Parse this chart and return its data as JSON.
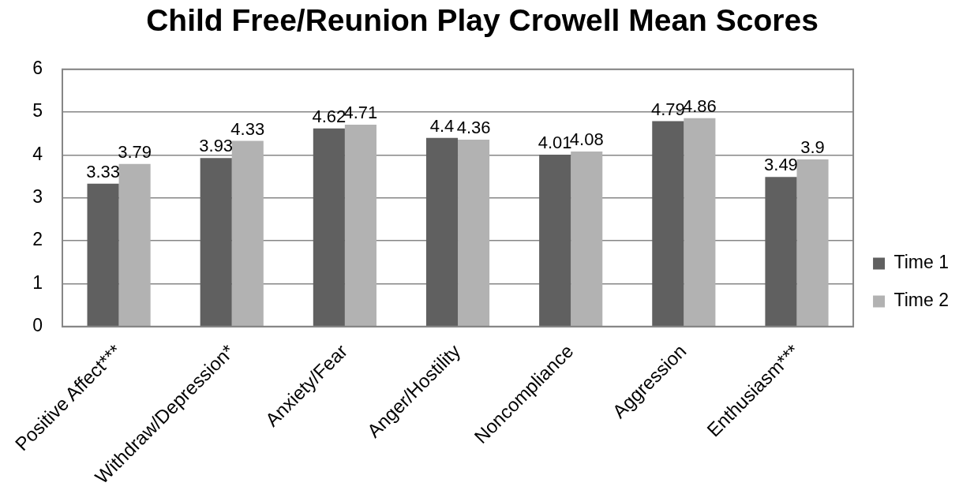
{
  "chart_data": {
    "type": "bar",
    "title": "Child Free/Reunion Play Crowell Mean Scores",
    "categories": [
      "Positive Affect***",
      "Withdraw/Depression*",
      "Anxiety/Fear",
      "Anger/Hostility",
      "Noncompliance",
      "Aggression",
      "Enthusiasm***"
    ],
    "series": [
      {
        "name": "Time 1",
        "color": "#606060",
        "values": [
          3.33,
          3.93,
          4.62,
          4.4,
          4.01,
          4.79,
          3.49
        ]
      },
      {
        "name": "Time 2",
        "color": "#b2b2b2",
        "values": [
          3.79,
          4.33,
          4.71,
          4.36,
          4.08,
          4.86,
          3.9
        ]
      }
    ],
    "ylim": [
      0,
      6
    ],
    "yticks": [
      0,
      1,
      2,
      3,
      4,
      5,
      6
    ],
    "grid": "y",
    "legend": "right",
    "data_labels": true
  }
}
